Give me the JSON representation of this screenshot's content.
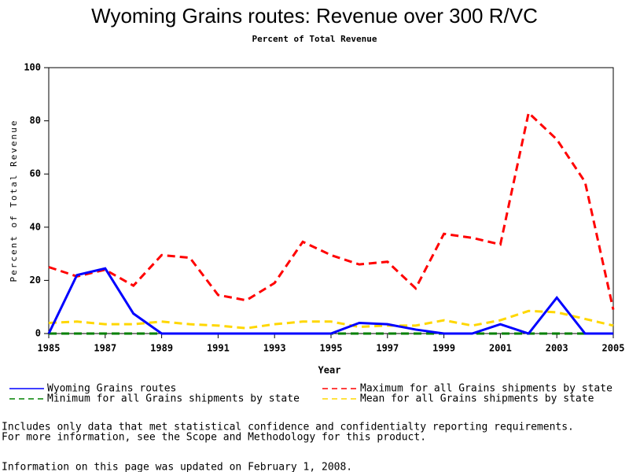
{
  "chart_data": {
    "type": "line",
    "title": "Wyoming Grains routes: Revenue over 300 R/VC",
    "subtitle": "Percent of Total Revenue",
    "x_label": "Year",
    "y_label": "Percent of Total Revenue",
    "x": [
      1985,
      1986,
      1987,
      1988,
      1989,
      1990,
      1991,
      1992,
      1993,
      1994,
      1995,
      1996,
      1997,
      1998,
      1999,
      2000,
      2001,
      2002,
      2003,
      2004,
      2005
    ],
    "xlim": [
      1985,
      2005
    ],
    "xticks": [
      1985,
      1987,
      1989,
      1991,
      1993,
      1995,
      1997,
      1999,
      2001,
      2003,
      2005
    ],
    "ylim": [
      0,
      100
    ],
    "yticks": [
      0,
      20,
      40,
      60,
      80,
      100
    ],
    "series": [
      {
        "name": "Wyoming Grains routes",
        "color": "#0000ff",
        "dash": "none",
        "values": [
          0,
          22,
          24.5,
          7.5,
          0,
          0,
          0,
          0,
          0,
          0,
          0,
          4,
          3.5,
          1.5,
          0,
          0,
          3.5,
          0,
          13.5,
          0,
          0
        ]
      },
      {
        "name": "Maximum for all Grains shipments by state",
        "color": "#ff0000",
        "dash": "10 6",
        "values": [
          25,
          21.5,
          24,
          18,
          29.5,
          28.5,
          14.5,
          12.5,
          19,
          34.5,
          29.5,
          26,
          27,
          17,
          37.5,
          36,
          33.5,
          83,
          73,
          57,
          9
        ]
      },
      {
        "name": "Minimum for all Grains shipments by state",
        "color": "#008000",
        "dash": "10 6",
        "values": [
          0,
          0,
          0,
          0,
          0,
          0,
          0,
          0,
          0,
          0,
          0,
          0,
          0,
          0,
          0,
          0,
          0,
          0,
          0,
          0,
          0
        ]
      },
      {
        "name": "Mean for all Grains shipments by state",
        "color": "#ffd700",
        "dash": "10 6",
        "values": [
          4,
          4.5,
          3.5,
          3.5,
          4.5,
          3.5,
          3,
          2,
          3.5,
          4.5,
          4.5,
          2.5,
          3,
          3,
          5,
          3,
          5,
          8.5,
          8,
          5.5,
          3
        ]
      }
    ],
    "footnotes": [
      "Includes only data that met statistical confidence and confidentialty reporting requirements.",
      "For more information, see the Scope and Methodology for this product.",
      "Information on this page was updated on February 1, 2008."
    ]
  }
}
